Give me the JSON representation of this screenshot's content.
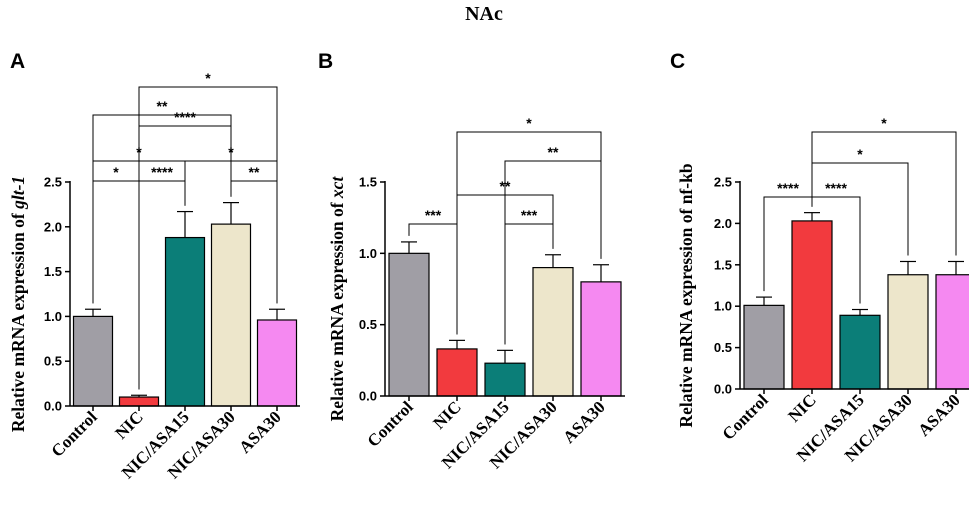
{
  "figure_title": "NAc",
  "categories": [
    "Control",
    "NIC",
    "NIC/ASA15",
    "NIC/ASA30",
    "ASA30"
  ],
  "colors": [
    "#a09ea5",
    "#f23a3e",
    "#0b7e78",
    "#ede6cb",
    "#f589f1"
  ],
  "chart_data": [
    {
      "type": "bar",
      "panel": "A",
      "ylabel_prefix": "Relative mRNA expression of ",
      "ylabel_gene": "glt-1",
      "gene_italic": true,
      "ylim": [
        0,
        2.5
      ],
      "yticks": [
        "0.0",
        "0.5",
        "1.0",
        "1.5",
        "2.0",
        "2.5"
      ],
      "categories": [
        "Control",
        "NIC",
        "NIC/ASA15",
        "NIC/ASA30",
        "ASA30"
      ],
      "values": [
        1.0,
        0.1,
        1.88,
        2.03,
        0.96
      ],
      "errors": [
        0.08,
        0.02,
        0.29,
        0.24,
        0.12
      ],
      "comparisons": [
        {
          "from": 0,
          "to": 1,
          "label": "*"
        },
        {
          "from": 1,
          "to": 2,
          "label": "****"
        },
        {
          "from": 3,
          "to": 4,
          "label": "**"
        },
        {
          "from": 0,
          "to": 2,
          "label": "*"
        },
        {
          "from": 2,
          "to": 4,
          "label": "*"
        },
        {
          "from": 1,
          "to": 3,
          "label": "****"
        },
        {
          "from": 0,
          "to": 3,
          "label": "**"
        },
        {
          "from": 1,
          "to": 4,
          "label": "*"
        }
      ]
    },
    {
      "type": "bar",
      "panel": "B",
      "ylabel_prefix": "Relative mRNA expression of ",
      "ylabel_gene": "xct",
      "gene_italic": true,
      "ylim": [
        0,
        1.5
      ],
      "yticks": [
        "0.0",
        "0.5",
        "1.0",
        "1.5"
      ],
      "categories": [
        "Control",
        "NIC",
        "NIC/ASA15",
        "NIC/ASA30",
        "ASA30"
      ],
      "values": [
        1.0,
        0.33,
        0.23,
        0.9,
        0.8
      ],
      "errors": [
        0.08,
        0.06,
        0.09,
        0.09,
        0.12
      ],
      "comparisons": [
        {
          "from": 0,
          "to": 1,
          "label": "***"
        },
        {
          "from": 2,
          "to": 3,
          "label": "***"
        },
        {
          "from": 1,
          "to": 3,
          "label": "**"
        },
        {
          "from": 2,
          "to": 4,
          "label": "**"
        },
        {
          "from": 1,
          "to": 4,
          "label": "*"
        }
      ]
    },
    {
      "type": "bar",
      "panel": "C",
      "ylabel_prefix": "Relative mRNA expression of ",
      "ylabel_gene": "nf-kb",
      "gene_italic": false,
      "ylim": [
        0,
        2.5
      ],
      "yticks": [
        "0.0",
        "0.5",
        "1.0",
        "1.5",
        "2.0",
        "2.5"
      ],
      "categories": [
        "Control",
        "NIC",
        "NIC/ASA15",
        "NIC/ASA30",
        "ASA30"
      ],
      "values": [
        1.01,
        2.03,
        0.89,
        1.38,
        1.38
      ],
      "errors": [
        0.1,
        0.1,
        0.07,
        0.16,
        0.16
      ],
      "comparisons": [
        {
          "from": 0,
          "to": 1,
          "label": "****"
        },
        {
          "from": 1,
          "to": 2,
          "label": "****"
        },
        {
          "from": 1,
          "to": 3,
          "label": "*"
        },
        {
          "from": 1,
          "to": 4,
          "label": "*"
        }
      ]
    }
  ]
}
